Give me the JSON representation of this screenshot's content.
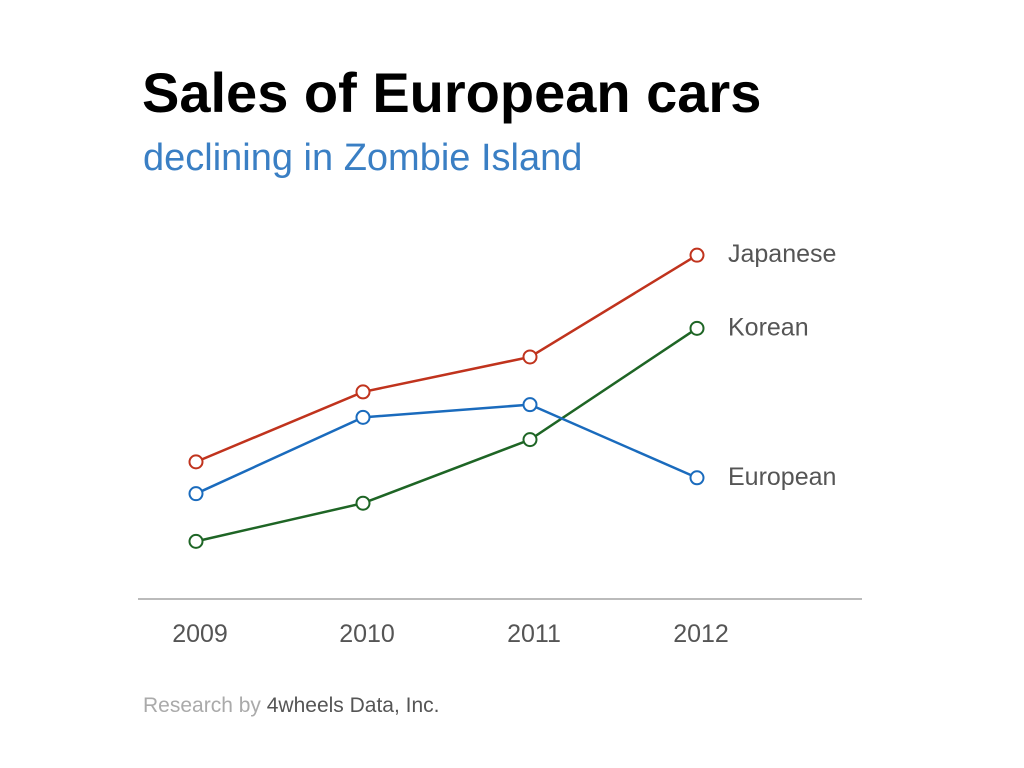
{
  "title": "Sales of European cars",
  "subtitle": "declining in Zombie Island",
  "footer": {
    "prefix": "Research by",
    "org": "4wheels Data, Inc."
  },
  "colors": {
    "subtitle": "#3a7fc4",
    "axis": "#bbbbbb"
  },
  "chart_data": {
    "type": "line",
    "title": "Sales of European cars",
    "subtitle": "declining in Zombie Island",
    "x": [
      "2009",
      "2010",
      "2011",
      "2012"
    ],
    "xlabel": "",
    "ylabel": "",
    "y_axis_shown": false,
    "ylim": [
      0,
      100
    ],
    "grid": false,
    "legend": "direct labels at right end of each line",
    "series": [
      {
        "name": "Japanese",
        "color": "#c0331d",
        "values": [
          34,
          56,
          67,
          99
        ]
      },
      {
        "name": "Korean",
        "color": "#1e6525",
        "values": [
          9,
          21,
          41,
          76
        ]
      },
      {
        "name": "European",
        "color": "#1a6bbd",
        "values": [
          24,
          48,
          52,
          29
        ]
      }
    ]
  }
}
